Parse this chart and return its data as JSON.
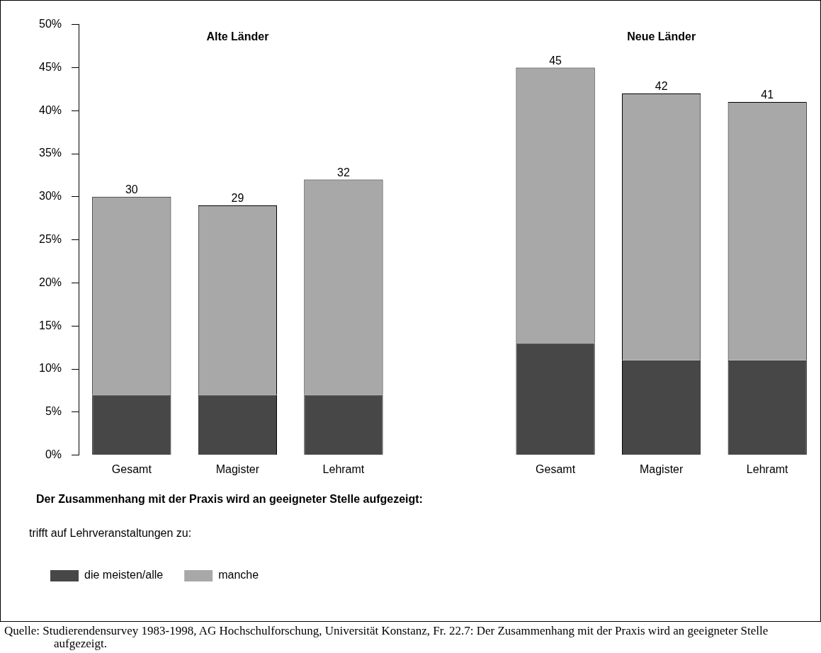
{
  "chart_data": {
    "type": "bar",
    "stacked": true,
    "categories": [
      "Gesamt",
      "Magister",
      "Lehramt",
      null,
      "Gesamt",
      "Magister",
      "Lehramt"
    ],
    "series": [
      {
        "name": "die meisten/alle",
        "color": "#474747",
        "values": [
          7,
          7,
          7,
          null,
          13,
          11,
          11
        ]
      },
      {
        "name": "manche",
        "color": "#a8a8a8",
        "values": [
          23,
          22,
          25,
          null,
          32,
          31,
          30
        ]
      }
    ],
    "totals": [
      "30",
      "29",
      "32",
      null,
      "45",
      "42",
      "41"
    ],
    "ylim": [
      0,
      50
    ],
    "yticks": [
      {
        "value": 0,
        "label": "0%"
      },
      {
        "value": 5,
        "label": "5%"
      },
      {
        "value": 10,
        "label": "10%"
      },
      {
        "value": 15,
        "label": "15%"
      },
      {
        "value": 20,
        "label": "20%"
      },
      {
        "value": 25,
        "label": "25%"
      },
      {
        "value": 30,
        "label": "30%"
      },
      {
        "value": 35,
        "label": "35%"
      },
      {
        "value": 40,
        "label": "40%"
      },
      {
        "value": 45,
        "label": "45%"
      },
      {
        "value": 50,
        "label": "50%"
      }
    ],
    "grid": false,
    "legend": "bottom",
    "legend_title": "trifft auf Lehrveranstaltungen zu:",
    "annotations": [
      "Alte Länder",
      "Neue Länder",
      "Der Zusammenhang mit der Praxis wird an geeigneter Stelle aufgezeigt:",
      "Quelle:  Studierendensurvey 1983-1998, AG Hochschulforschung, Universität Konstanz, Fr. 22.7: Der Zusammenhang mit der Praxis wird an geeigneter Stelle aufgezeigt."
    ]
  }
}
